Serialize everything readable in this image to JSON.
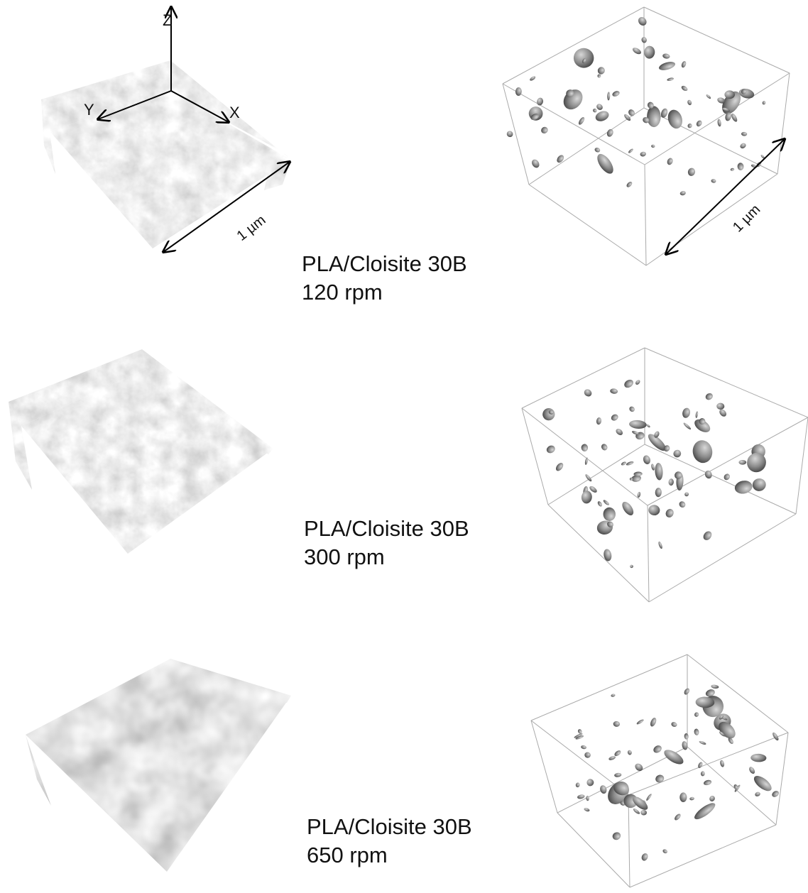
{
  "axes": {
    "z": "Z",
    "y": "Y",
    "x": "X"
  },
  "scale_bars": [
    "1 µm",
    "1 µm"
  ],
  "panels": [
    {
      "material": "PLA/Cloisite 30B",
      "speed": "120 rpm"
    },
    {
      "material": "PLA/Cloisite 30B",
      "speed": "300 rpm"
    },
    {
      "material": "PLA/Cloisite 30B",
      "speed": "650 rpm"
    }
  ]
}
